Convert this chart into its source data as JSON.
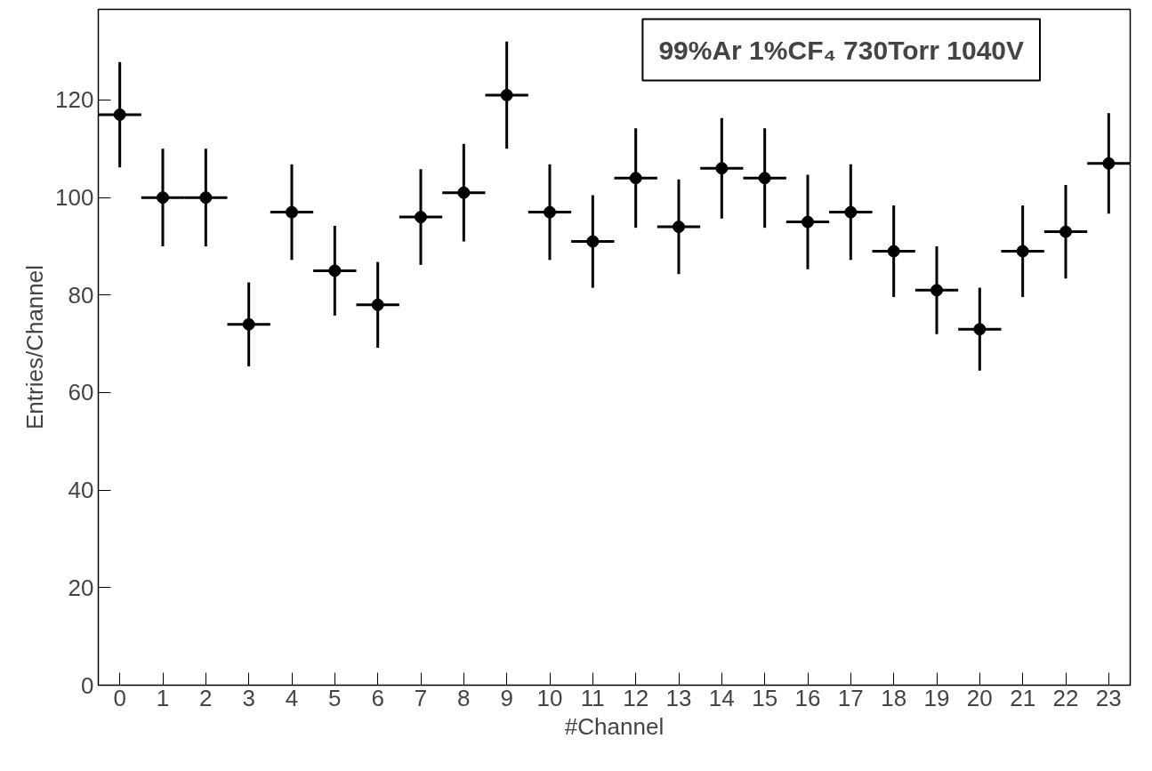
{
  "chart_data": {
    "type": "scatter",
    "title": "99%Ar 1%CF₄ 730Torr 1040V",
    "xlabel": "#Channel",
    "ylabel": "Entries/Channel",
    "x": [
      0,
      1,
      2,
      3,
      4,
      5,
      6,
      7,
      8,
      9,
      10,
      11,
      12,
      13,
      14,
      15,
      16,
      17,
      18,
      19,
      20,
      21,
      22,
      23
    ],
    "values": [
      117,
      100,
      100,
      74,
      97,
      85,
      78,
      96,
      101,
      121,
      97,
      91,
      104,
      94,
      106,
      104,
      95,
      97,
      89,
      81,
      73,
      89,
      93,
      107
    ],
    "errors": [
      10.8,
      10,
      10,
      8.6,
      9.8,
      9.2,
      8.8,
      9.8,
      10,
      11,
      9.8,
      9.5,
      10.2,
      9.7,
      10.3,
      10.2,
      9.7,
      9.8,
      9.4,
      9,
      8.5,
      9.4,
      9.6,
      10.3
    ],
    "xerrors": [
      0.5,
      0.5,
      0.5,
      0.5,
      0.5,
      0.5,
      0.5,
      0.5,
      0.5,
      0.5,
      0.5,
      0.5,
      0.5,
      0.5,
      0.5,
      0.5,
      0.5,
      0.5,
      0.5,
      0.5,
      0.5,
      0.5,
      0.5,
      0.5
    ],
    "color": "#000000",
    "marker": "circle",
    "grid": false,
    "xlim": [
      -0.5,
      23.5
    ],
    "ylim": [
      0,
      138.6
    ],
    "xticks": [
      0,
      1,
      2,
      3,
      4,
      5,
      6,
      7,
      8,
      9,
      10,
      11,
      12,
      13,
      14,
      15,
      16,
      17,
      18,
      19,
      20,
      21,
      22,
      23
    ],
    "yticks": [
      0,
      20,
      40,
      60,
      80,
      100,
      120
    ]
  }
}
